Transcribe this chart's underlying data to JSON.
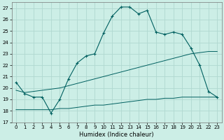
{
  "xlabel": "Humidex (Indice chaleur)",
  "bg_color": "#cceee6",
  "line_color": "#006060",
  "grid_color": "#b0d8d0",
  "xlim": [
    -0.5,
    23.5
  ],
  "ylim": [
    17,
    27.5
  ],
  "yticks": [
    17,
    18,
    19,
    20,
    21,
    22,
    23,
    24,
    25,
    26,
    27
  ],
  "xticks": [
    0,
    1,
    2,
    3,
    4,
    5,
    6,
    7,
    8,
    9,
    10,
    11,
    12,
    13,
    14,
    15,
    16,
    17,
    18,
    19,
    20,
    21,
    22,
    23
  ],
  "line1_x": [
    0,
    1,
    2,
    3,
    4,
    5,
    6,
    7,
    8,
    9,
    10,
    11,
    12,
    13,
    14,
    15,
    16,
    17,
    18,
    19,
    20,
    21,
    22,
    23
  ],
  "line1_y": [
    20.5,
    19.5,
    19.2,
    19.2,
    17.8,
    19.0,
    20.8,
    22.2,
    22.8,
    23.0,
    24.8,
    26.3,
    27.1,
    27.1,
    26.5,
    26.8,
    24.9,
    24.7,
    24.9,
    24.7,
    23.5,
    22.0,
    19.7,
    19.2
  ],
  "line2_x": [
    0,
    1,
    2,
    3,
    4,
    5,
    6,
    7,
    8,
    9,
    10,
    11,
    12,
    13,
    14,
    15,
    16,
    17,
    18,
    19,
    20,
    21,
    22,
    23
  ],
  "line2_y": [
    19.8,
    19.6,
    19.7,
    19.8,
    19.9,
    20.0,
    20.2,
    20.4,
    20.6,
    20.8,
    21.0,
    21.2,
    21.4,
    21.6,
    21.8,
    22.0,
    22.2,
    22.4,
    22.6,
    22.8,
    23.0,
    23.1,
    23.2,
    23.2
  ],
  "line3_x": [
    0,
    1,
    2,
    3,
    4,
    5,
    6,
    7,
    8,
    9,
    10,
    11,
    12,
    13,
    14,
    15,
    16,
    17,
    18,
    19,
    20,
    21,
    22,
    23
  ],
  "line3_y": [
    18.1,
    18.1,
    18.1,
    18.1,
    18.1,
    18.2,
    18.2,
    18.3,
    18.4,
    18.5,
    18.5,
    18.6,
    18.7,
    18.8,
    18.9,
    19.0,
    19.0,
    19.1,
    19.1,
    19.2,
    19.2,
    19.2,
    19.2,
    19.2
  ],
  "xlabel_fontsize": 6,
  "tick_fontsize": 5
}
